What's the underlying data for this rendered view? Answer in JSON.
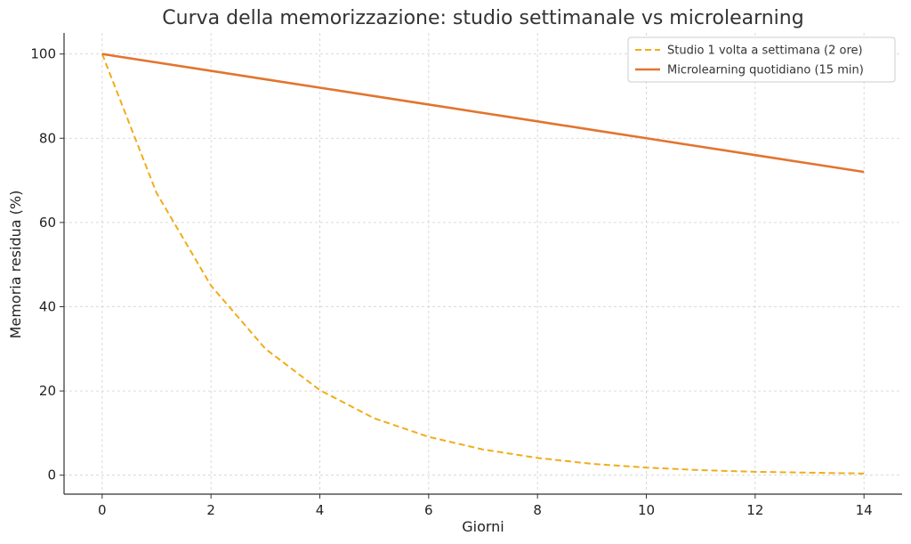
{
  "chart_data": {
    "type": "line",
    "title": "Curva della memorizzazione: studio settimanale vs microlearning",
    "xlabel": "Giorni",
    "ylabel": "Memoria residua (%)",
    "xlim": [
      -0.7,
      14.7
    ],
    "ylim": [
      -4.5,
      105
    ],
    "x_ticks": [
      0,
      2,
      4,
      6,
      8,
      10,
      12,
      14
    ],
    "y_ticks": [
      0,
      20,
      40,
      60,
      80,
      100
    ],
    "x_tick_labels": [
      "0",
      "2",
      "4",
      "6",
      "8",
      "10",
      "12",
      "14"
    ],
    "y_tick_labels": [
      "0",
      "20",
      "40",
      "60",
      "80",
      "100"
    ],
    "grid": true,
    "legend_position": "top-right",
    "x": [
      0,
      1,
      2,
      3,
      4,
      5,
      6,
      7,
      8,
      9,
      10,
      11,
      12,
      13,
      14
    ],
    "series": [
      {
        "name": "Studio 1 volta a settimana (2 ore)",
        "color": "#f2ac1a",
        "style": "dashed",
        "values": [
          100,
          67,
          45,
          30,
          20.2,
          13.5,
          9.1,
          6.1,
          4.1,
          2.7,
          1.8,
          1.2,
          0.8,
          0.6,
          0.4
        ]
      },
      {
        "name": "Microlearning quotidiano (15 min)",
        "color": "#e3742f",
        "style": "solid",
        "values": [
          100,
          98,
          96,
          94,
          92,
          90,
          88,
          86,
          84,
          82,
          80,
          78,
          76,
          74,
          72
        ]
      }
    ]
  }
}
